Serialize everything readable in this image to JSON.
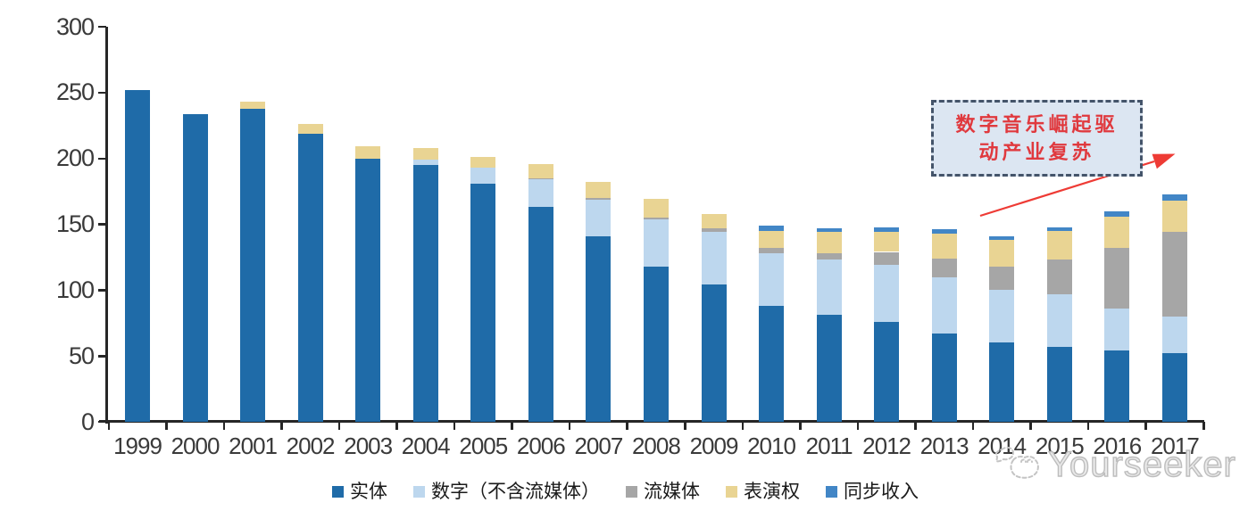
{
  "chart_data": {
    "type": "bar",
    "stacked": true,
    "title": "",
    "xlabel": "",
    "ylabel": "",
    "ylim": [
      0,
      300
    ],
    "yticks": [
      0,
      50,
      100,
      150,
      200,
      250,
      300
    ],
    "grid": false,
    "legend_position": "bottom",
    "categories": [
      "1999",
      "2000",
      "2001",
      "2002",
      "2003",
      "2004",
      "2005",
      "2006",
      "2007",
      "2008",
      "2009",
      "2010",
      "2011",
      "2012",
      "2013",
      "2014",
      "2015",
      "2016",
      "2017"
    ],
    "series": [
      {
        "name": "实体",
        "color": "#1F6BA8",
        "values": [
          252,
          234,
          238,
          219,
          200,
          195,
          181,
          163,
          141,
          118,
          104,
          88,
          81,
          76,
          67,
          60,
          57,
          54,
          52
        ]
      },
      {
        "name": "数字（不含流媒体）",
        "color": "#BDD7EE",
        "values": [
          0,
          0,
          0,
          0,
          0,
          4,
          12,
          21,
          28,
          36,
          40,
          40,
          42,
          43,
          43,
          40,
          40,
          32,
          28
        ]
      },
      {
        "name": "流媒体",
        "color": "#A6A6A6",
        "values": [
          0,
          0,
          0,
          0,
          0,
          0,
          0,
          1,
          1,
          1,
          3,
          4,
          5,
          10,
          14,
          18,
          26,
          46,
          64
        ]
      },
      {
        "name": "表演权",
        "color": "#E9D493",
        "values": [
          0,
          0,
          5,
          7,
          9,
          9,
          8,
          11,
          12,
          14,
          11,
          13,
          16,
          15,
          19,
          20,
          22,
          24,
          24
        ]
      },
      {
        "name": "同步收入",
        "color": "#4286C6",
        "values": [
          0,
          0,
          0,
          0,
          0,
          0,
          0,
          0,
          0,
          0,
          0,
          4,
          3,
          4,
          3,
          3,
          3,
          4,
          5
        ]
      }
    ],
    "totals": [
      252,
      234,
      243,
      226,
      209,
      208,
      201,
      196,
      182,
      169,
      158,
      149,
      147,
      148,
      146,
      141,
      148,
      160,
      173
    ]
  },
  "annotation": {
    "line1": "数字音乐崛起驱",
    "line2": "动产业复苏",
    "text_color": "#E0393E",
    "box_fill": "#DCE6F2",
    "box_border": "#44546A",
    "arrow_color": "#EE3B35"
  },
  "watermark": {
    "text": "Yourseeker"
  },
  "axis": {
    "color": "#262626",
    "label_color": "#3A3A3A"
  }
}
